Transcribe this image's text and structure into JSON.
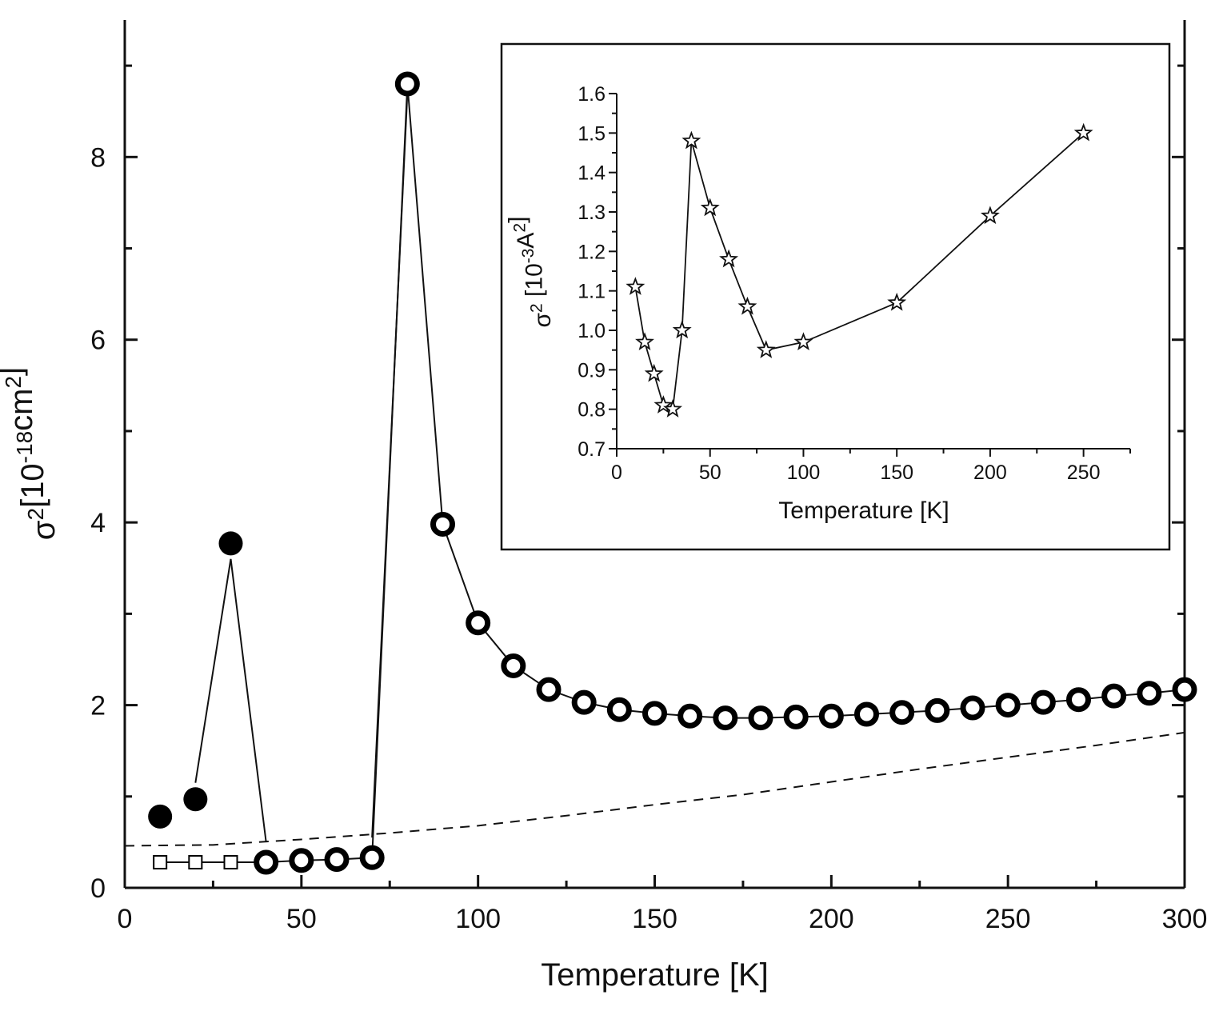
{
  "chart_data": [
    {
      "type": "scatter",
      "xlabel": "Temperature [K]",
      "ylabel": {
        "base": "σ",
        "sup": "2",
        "mid": "[10",
        "sup2": "-18",
        "unit": "cm",
        "sup3": "2",
        "end": "]"
      },
      "xlim": [
        0,
        300
      ],
      "ylim": [
        0,
        9.5
      ],
      "x_ticks": [
        0,
        50,
        100,
        150,
        200,
        250,
        300
      ],
      "y_ticks": [
        0,
        2,
        4,
        6,
        8
      ],
      "grid": false,
      "series": [
        {
          "marker": "filled-circle",
          "line": "solid",
          "points": [
            [
              10,
              0.78
            ],
            [
              20,
              0.97
            ],
            [
              30,
              3.77
            ]
          ]
        },
        {
          "marker": "open-circle-thick",
          "line": "solid",
          "points": [
            [
              40,
              0.28
            ],
            [
              50,
              0.3
            ],
            [
              60,
              0.31
            ],
            [
              70,
              0.33
            ],
            [
              80,
              8.8
            ],
            [
              90,
              3.98
            ],
            [
              100,
              2.9
            ],
            [
              110,
              2.43
            ],
            [
              120,
              2.17
            ],
            [
              130,
              2.03
            ],
            [
              140,
              1.95
            ],
            [
              150,
              1.91
            ],
            [
              160,
              1.88
            ],
            [
              170,
              1.86
            ],
            [
              180,
              1.86
            ],
            [
              190,
              1.87
            ],
            [
              200,
              1.88
            ],
            [
              210,
              1.9
            ],
            [
              220,
              1.92
            ],
            [
              230,
              1.94
            ],
            [
              240,
              1.97
            ],
            [
              250,
              2.0
            ],
            [
              260,
              2.03
            ],
            [
              270,
              2.06
            ],
            [
              280,
              2.1
            ],
            [
              290,
              2.13
            ],
            [
              300,
              2.17
            ]
          ]
        },
        {
          "marker": "open-square",
          "line": "solid",
          "points": [
            [
              10,
              0.28
            ],
            [
              20,
              0.28
            ],
            [
              30,
              0.28
            ]
          ]
        },
        {
          "marker": "none",
          "line": "dashed",
          "points": [
            [
              0,
              0.46
            ],
            [
              25,
              0.47
            ],
            [
              50,
              0.53
            ],
            [
              75,
              0.6
            ],
            [
              100,
              0.68
            ],
            [
              125,
              0.79
            ],
            [
              150,
              0.91
            ],
            [
              175,
              1.02
            ],
            [
              200,
              1.16
            ],
            [
              225,
              1.3
            ],
            [
              250,
              1.43
            ],
            [
              275,
              1.56
            ],
            [
              300,
              1.7
            ]
          ]
        }
      ],
      "segment_connections": [
        [
          [
            30,
            3.6
          ],
          [
            40,
            0.5
          ]
        ],
        [
          [
            20,
            1.15
          ],
          [
            30,
            3.6
          ]
        ],
        [
          [
            70,
            0.55
          ],
          [
            80,
            8.7
          ]
        ]
      ]
    },
    {
      "type": "line",
      "xlabel": "Temperature [K]",
      "ylabel": {
        "base": "σ",
        "sup": "2",
        "mid": " [10",
        "sup2": "-3",
        "unit": "A",
        "sup3": "2",
        "end": "]"
      },
      "xlim": [
        0,
        275
      ],
      "ylim": [
        0.7,
        1.6
      ],
      "x_ticks": [
        0,
        50,
        100,
        150,
        200,
        250
      ],
      "y_ticks": [
        "0.7",
        "0.8",
        "0.9",
        "1.0",
        "1.1",
        "1.2",
        "1.3",
        "1.4",
        "1.5",
        "1.6"
      ],
      "grid": false,
      "series": [
        {
          "marker": "open-star",
          "line": "solid",
          "points": [
            [
              10,
              1.11
            ],
            [
              15,
              0.97
            ],
            [
              20,
              0.89
            ],
            [
              25,
              0.81
            ],
            [
              30,
              0.8
            ],
            [
              35,
              1.0
            ],
            [
              40,
              1.48
            ],
            [
              50,
              1.31
            ],
            [
              60,
              1.18
            ],
            [
              70,
              1.06
            ],
            [
              80,
              0.95
            ],
            [
              100,
              0.97
            ],
            [
              150,
              1.07
            ],
            [
              200,
              1.29
            ],
            [
              250,
              1.5
            ]
          ]
        }
      ]
    }
  ]
}
